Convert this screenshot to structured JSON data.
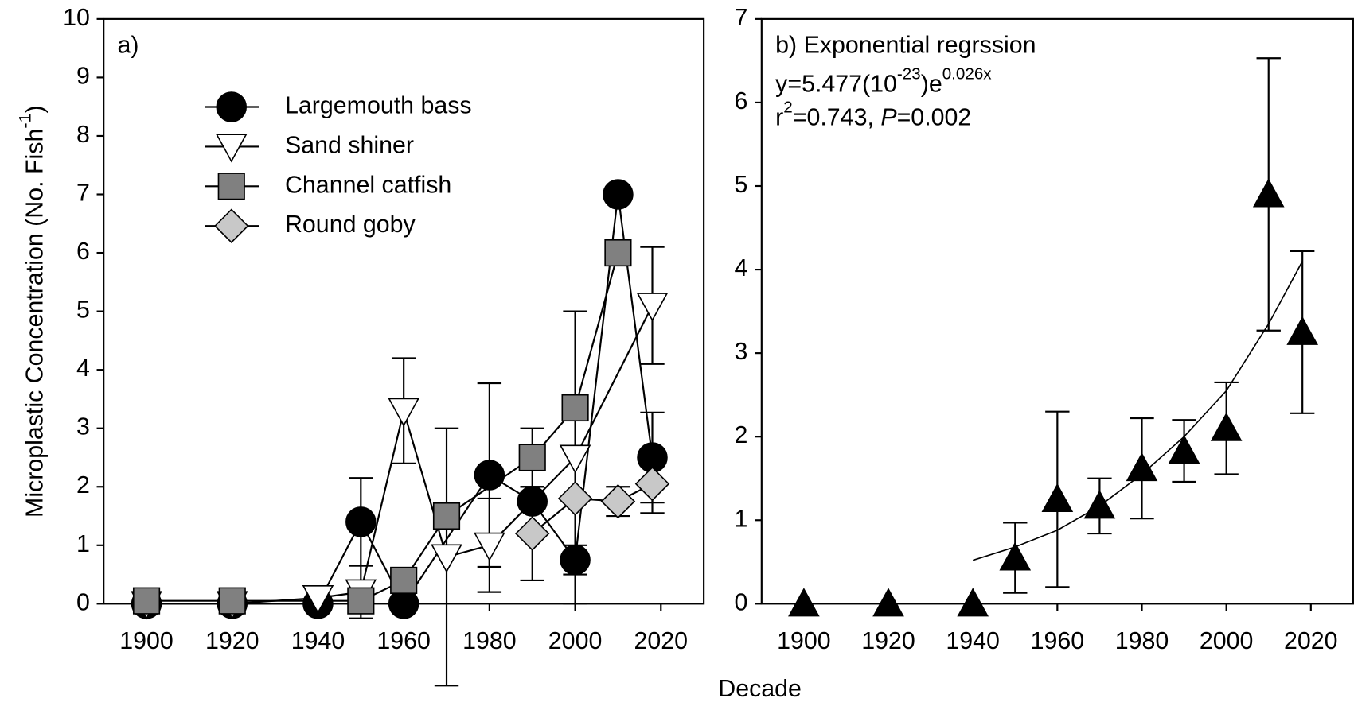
{
  "figure": {
    "xlabel": "Decade"
  },
  "chart_data": [
    {
      "type": "line",
      "panel_label": "a)",
      "ylabel": [
        "Microplastic Concentration (No. Fish",
        "-1",
        ")"
      ],
      "xlim": [
        1890,
        2030
      ],
      "xticks": [
        1900,
        1920,
        1940,
        1960,
        1980,
        2000,
        2020
      ],
      "ylim": [
        0,
        10
      ],
      "yticks": [
        0,
        1,
        2,
        3,
        4,
        5,
        6,
        7,
        8,
        9,
        10
      ],
      "legend": "upper left",
      "series": [
        {
          "name": "Largemouth bass",
          "marker": "circle",
          "color": "#000000",
          "x": [
            1900,
            1920,
            1940,
            1950,
            1960,
            1980,
            1990,
            2000,
            2010,
            2018
          ],
          "values": [
            0,
            0,
            0,
            1.4,
            0,
            2.2,
            1.75,
            0.75,
            7,
            2.5
          ],
          "errors": [
            null,
            null,
            null,
            0.75,
            null,
            1.57,
            null,
            0.25,
            null,
            0.77
          ]
        },
        {
          "name": "Sand shiner",
          "marker": "triangle-down",
          "color": "#ffffff",
          "x": [
            1900,
            1920,
            1940,
            1950,
            1960,
            1970,
            1980,
            2000,
            2018
          ],
          "values": [
            0,
            0,
            0.1,
            0.2,
            3.3,
            0.8,
            1.0,
            2.5,
            5.1
          ],
          "errors": [
            null,
            null,
            null,
            0.45,
            0.9,
            2.2,
            0.8,
            2.5,
            1.0
          ]
        },
        {
          "name": "Channel catfish",
          "marker": "square",
          "color": "#808080",
          "x": [
            1900,
            1920,
            1950,
            1960,
            1970,
            1990,
            2000,
            2010
          ],
          "values": [
            0.05,
            0.05,
            0.05,
            0.4,
            1.5,
            2.5,
            3.35,
            6.0
          ],
          "errors": [
            null,
            null,
            null,
            null,
            null,
            0.5,
            null,
            null
          ]
        },
        {
          "name": "Round goby",
          "marker": "diamond",
          "color": "#c8c8c8",
          "x": [
            1990,
            2000,
            2010,
            2018
          ],
          "values": [
            1.2,
            1.8,
            1.75,
            2.05
          ],
          "errors": [
            0.8,
            null,
            0.25,
            0.5
          ]
        }
      ]
    },
    {
      "type": "line",
      "panel_label": "b) Exponential regrssion",
      "equation": [
        "y=5.477(10",
        "-23",
        ")e",
        "0.026x"
      ],
      "stats": [
        "r",
        "2",
        "=0.743, ",
        "P",
        "=0.002"
      ],
      "xlim": [
        1890,
        2030
      ],
      "xticks": [
        1900,
        1920,
        1940,
        1960,
        1980,
        2000,
        2020
      ],
      "ylim": [
        0,
        7
      ],
      "yticks": [
        0,
        1,
        2,
        3,
        4,
        5,
        6,
        7
      ],
      "series": [
        {
          "marker": "triangle-up",
          "color": "#000000",
          "x": [
            1900,
            1920,
            1940,
            1950,
            1960,
            1970,
            1980,
            1990,
            2000,
            2010,
            2018
          ],
          "values": [
            0,
            0,
            0,
            0.55,
            1.25,
            1.17,
            1.62,
            1.83,
            2.1,
            4.9,
            3.25
          ],
          "errors": [
            null,
            null,
            null,
            0.42,
            1.05,
            0.33,
            0.6,
            0.37,
            0.55,
            1.63,
            0.97
          ]
        }
      ],
      "fit": {
        "x": [
          1940,
          1950,
          1960,
          1970,
          1980,
          1990,
          2000,
          2010,
          2018
        ],
        "values": [
          0.52,
          0.68,
          0.88,
          1.17,
          1.55,
          2.0,
          2.55,
          3.35,
          4.1
        ]
      }
    }
  ]
}
